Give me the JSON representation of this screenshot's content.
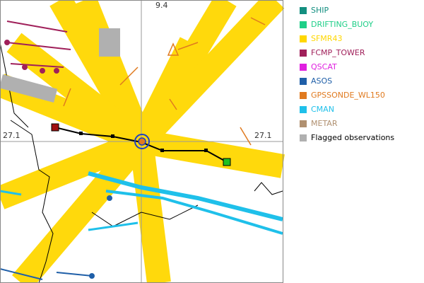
{
  "map": {
    "grid_labels": {
      "lat_left": "27.1",
      "lat_right": "27.1",
      "lon_top": "9.4"
    }
  },
  "legend": {
    "items": [
      {
        "label": "SHIP",
        "color": "#138f80"
      },
      {
        "label": "DRIFTING_BUOY",
        "color": "#1fcf88"
      },
      {
        "label": "SFMR43",
        "color": "#ffd700"
      },
      {
        "label": "FCMP_TOWER",
        "color": "#a0205a"
      },
      {
        "label": "QSCAT",
        "color": "#e020e0"
      },
      {
        "label": "ASOS",
        "color": "#1f5fa8"
      },
      {
        "label": "GPSSONDE_WL150",
        "color": "#e07a1f"
      },
      {
        "label": "CMAN",
        "color": "#1fc0ea"
      },
      {
        "label": "METAR",
        "color": "#b09070"
      },
      {
        "label": "Flagged observations",
        "color": "#b0b0b0"
      }
    ]
  }
}
